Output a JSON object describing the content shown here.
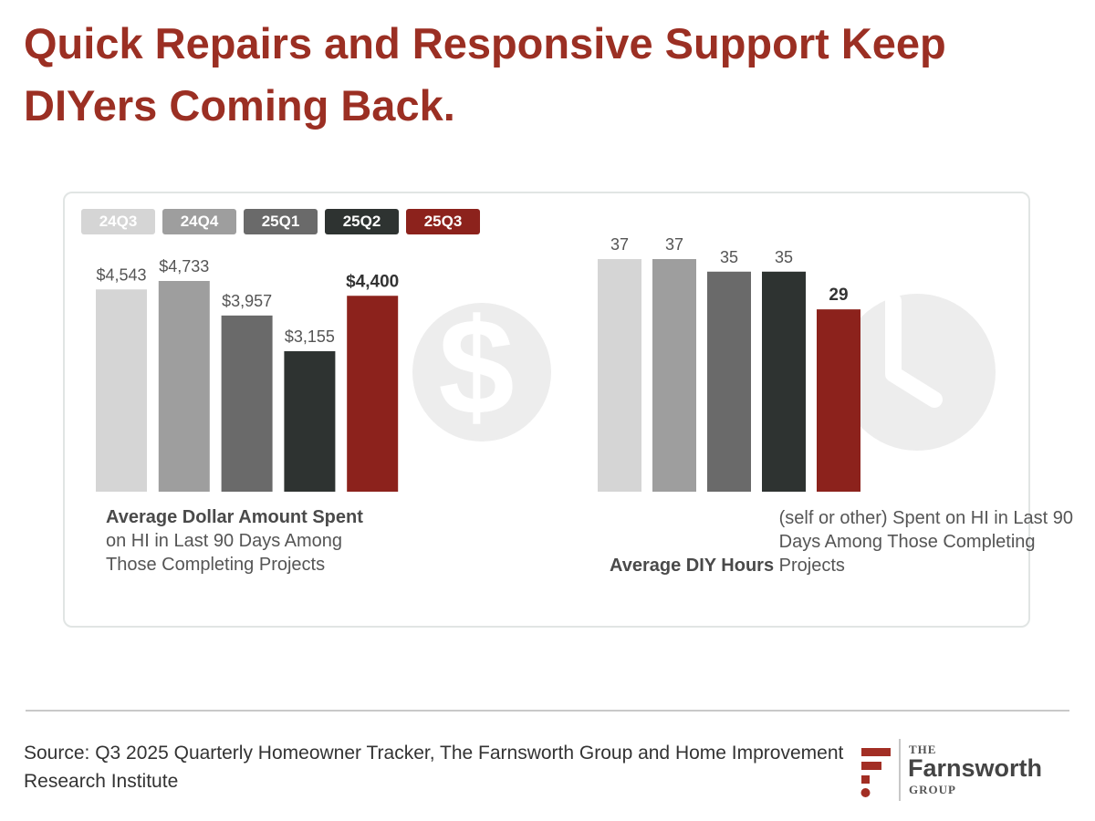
{
  "title": "Quick Repairs and Responsive Support Keep DIYers Coming Back.",
  "colors": {
    "title": "#9b2f23",
    "series": [
      "#d5d5d5",
      "#9e9e9e",
      "#6a6a6a",
      "#2e3331",
      "#8c221c"
    ],
    "watermark": "#ededed"
  },
  "legend": [
    "24Q3",
    "24Q4",
    "25Q1",
    "25Q2",
    "25Q3"
  ],
  "chart_data": [
    {
      "type": "bar",
      "categories": [
        "24Q3",
        "24Q4",
        "25Q1",
        "25Q2",
        "25Q3"
      ],
      "values": [
        4543,
        4733,
        3957,
        3155,
        4400
      ],
      "labels": [
        "$4,543",
        "$4,733",
        "$3,957",
        "$3,155",
        "$4,400"
      ],
      "highlight_index": 4,
      "caption_bold": "Average Dollar Amount Spent",
      "caption_rest": "on HI in Last 90 Days Among Those Completing Projects",
      "background_icon": "dollar-icon"
    },
    {
      "type": "bar",
      "categories": [
        "24Q3",
        "24Q4",
        "25Q1",
        "25Q2",
        "25Q3"
      ],
      "values": [
        37,
        37,
        35,
        35,
        29
      ],
      "labels": [
        "37",
        "37",
        "35",
        "35",
        "29"
      ],
      "highlight_index": 4,
      "caption_bold": "Average DIY Hours",
      "caption_rest": "(self or other) Spent on HI in Last 90 Days Among Those Completing Projects",
      "background_icon": "clock-icon"
    }
  ],
  "source": "Source: Q3 2025 Quarterly Homeowner Tracker, The Farnsworth Group and Home Improvement Research Institute",
  "logo": {
    "the": "THE",
    "name": "Farnsworth",
    "group": "GROUP",
    "mark_color": "#a22e24"
  }
}
